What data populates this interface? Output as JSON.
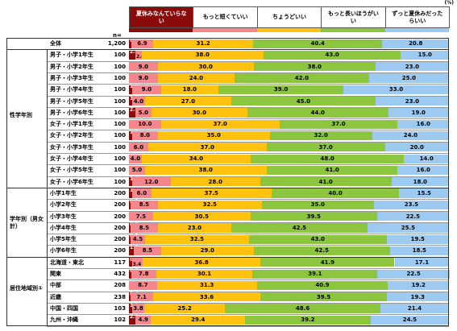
{
  "chart_data": {
    "type": "stacked-bar-horizontal",
    "unit": "(%)",
    "n_header": "n=",
    "xlim": [
      0,
      100
    ],
    "groups": [
      "性学年別",
      "学年別（男女計）",
      "居住地域別①"
    ],
    "categories": [
      "全体",
      "男子・小学1年生",
      "男子・小学2年生",
      "男子・小学3年生",
      "男子・小学4年生",
      "男子・小学5年生",
      "男子・小学6年生",
      "女子・小学1年生",
      "女子・小学2年生",
      "女子・小学3年生",
      "女子・小学4年生",
      "女子・小学5年生",
      "女子・小学6年生",
      "小学1年生",
      "小学2年生",
      "小学3年生",
      "小学4年生",
      "小学5年生",
      "小学6年生",
      "北海道・東北",
      "関東",
      "中部",
      "近畿",
      "中国・四国",
      "九州・沖縄"
    ],
    "n": [
      {
        "value": 1200,
        "label": "1,200"
      },
      100,
      100,
      100,
      100,
      100,
      100,
      100,
      100,
      100,
      100,
      100,
      100,
      200,
      200,
      200,
      200,
      200,
      200,
      117,
      432,
      208,
      238,
      103,
      102
    ],
    "series": [
      {
        "name": "夏休みなんていらない",
        "color": "#8b0a0a",
        "values": [
          0.7,
          2.0,
          0,
          0,
          1.0,
          1.0,
          2.0,
          0,
          1.0,
          0,
          0,
          0,
          1.0,
          1.0,
          0.5,
          0,
          0.5,
          0.5,
          1.5,
          0.9,
          0.7,
          0,
          0.4,
          1.0,
          2.0
        ],
        "value_labels": [
          "0.7",
          "2.0",
          null,
          null,
          "1.0",
          "1.0",
          "2.0",
          null,
          "1.0",
          null,
          null,
          null,
          "1.0",
          "1.0",
          "0.5",
          null,
          "0.5",
          "0.5",
          "1.5",
          "0.9",
          "0.7",
          null,
          "0.4",
          "1.0",
          "2.0"
        ]
      },
      {
        "name": "もっと短くていい",
        "color": "#f4868c",
        "values": [
          6.9,
          2.0,
          9.0,
          9.0,
          9.0,
          4.0,
          5.0,
          10.0,
          8.0,
          6.0,
          4.0,
          5.0,
          12.0,
          6.0,
          8.5,
          7.5,
          8.5,
          4.5,
          8.5,
          3.4,
          7.8,
          8.7,
          7.1,
          3.8,
          4.9
        ],
        "value_labels": [
          "6.9",
          "2.0",
          "9.0",
          "9.0",
          "9.0",
          "4.0",
          "5.0",
          "10.0",
          "8.0",
          "6.0",
          "4.0",
          "5.0",
          "12.0",
          "6.0",
          "8.5",
          "7.5",
          "8.5",
          "4.5",
          "8.5",
          "3.4",
          "7.8",
          "8.7",
          "7.1",
          "3.8",
          "4.9"
        ]
      },
      {
        "name": "ちょうどいい",
        "color": "#ffc20e",
        "values": [
          31.2,
          38.0,
          30.0,
          24.0,
          18.0,
          27.0,
          30.0,
          37.0,
          35.0,
          37.0,
          34.0,
          38.0,
          28.0,
          37.5,
          32.5,
          30.5,
          23.0,
          32.5,
          29.0,
          36.8,
          30.1,
          31.3,
          33.6,
          25.2,
          29.4
        ],
        "value_labels": [
          "31.2",
          "38.0",
          "30.0",
          "24.0",
          "18.0",
          "27.0",
          "30.0",
          "37.0",
          "35.0",
          "37.0",
          "34.0",
          "38.0",
          "28.0",
          "37.5",
          "32.5",
          "30.5",
          "23.0",
          "32.5",
          "29.0",
          "36.8",
          "30.1",
          "31.3",
          "33.6",
          "25.2",
          "29.4"
        ]
      },
      {
        "name": "もっと長いほうがいい",
        "color": "#8cc63e",
        "values": [
          40.4,
          43.0,
          38.0,
          42.0,
          39.0,
          45.0,
          44.0,
          37.0,
          32.0,
          37.0,
          48.0,
          41.0,
          41.0,
          40.0,
          35.0,
          39.5,
          42.5,
          43.0,
          42.5,
          41.9,
          39.1,
          40.9,
          39.5,
          48.6,
          39.2
        ],
        "value_labels": [
          "40.4",
          "43.0",
          "38.0",
          "42.0",
          "39.0",
          "45.0",
          "44.0",
          "37.0",
          "32.0",
          "37.0",
          "48.0",
          "41.0",
          "41.0",
          "40.0",
          "35.0",
          "39.5",
          "42.5",
          "43.0",
          "42.5",
          "41.9",
          "39.1",
          "40.9",
          "39.5",
          "48.6",
          "39.2"
        ]
      },
      {
        "name": "ずっと夏休みだったらいい",
        "color": "#9ccaf0",
        "values": [
          20.8,
          15.0,
          23.0,
          25.0,
          33.0,
          23.0,
          19.0,
          16.0,
          24.0,
          20.0,
          14.0,
          16.0,
          18.0,
          15.5,
          23.5,
          22.5,
          25.5,
          19.5,
          18.5,
          17.1,
          22.5,
          19.2,
          19.3,
          21.4,
          24.5
        ],
        "value_labels": [
          "20.8",
          "15.0",
          "23.0",
          "25.0",
          "33.0",
          "23.0",
          "19.0",
          "16.0",
          "24.0",
          "20.0",
          "14.0",
          "16.0",
          "18.0",
          "15.5",
          "23.5",
          "22.5",
          "25.5",
          "19.5",
          "18.5",
          "17.1",
          "22.5",
          "19.2",
          "19.3",
          "21.4",
          "24.5"
        ]
      }
    ]
  }
}
